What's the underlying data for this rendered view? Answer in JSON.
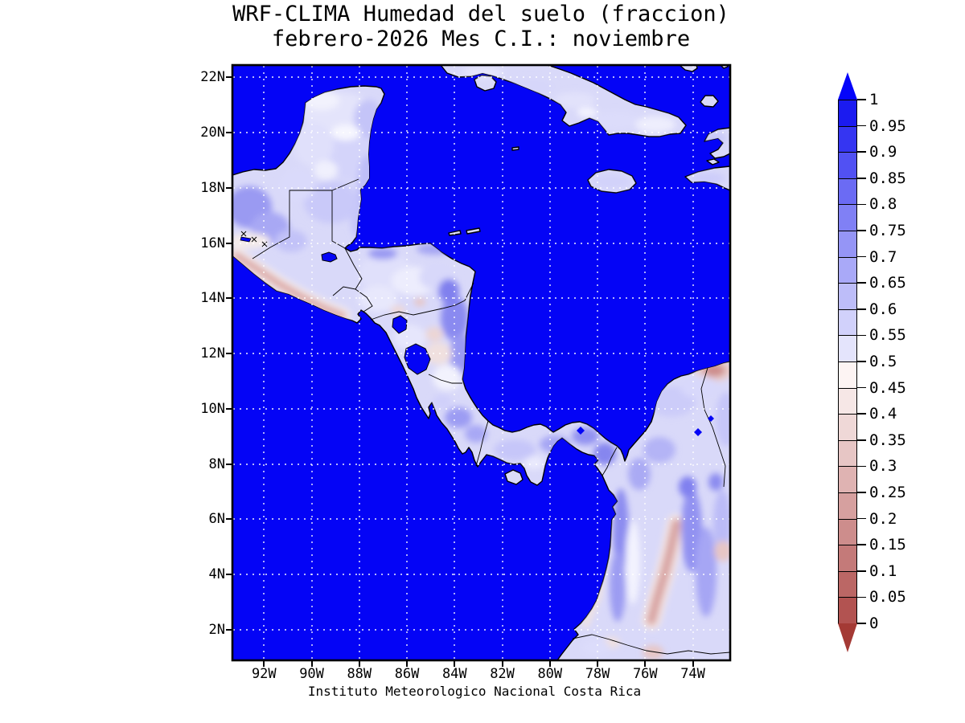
{
  "header": {
    "title_line1": "WRF-CLIMA Humedad del suelo (fraccion)",
    "title_line2": "febrero-2026 Mes C.I.: noviembre"
  },
  "footer": {
    "caption": "Instituto Meteorologico Nacional Costa Rica"
  },
  "map": {
    "lat_labels": [
      "22N",
      "20N",
      "18N",
      "16N",
      "14N",
      "12N",
      "10N",
      "8N",
      "6N",
      "4N",
      "2N"
    ],
    "lon_labels": [
      "92W",
      "90W",
      "88W",
      "86W",
      "84W",
      "82W",
      "80W",
      "78W",
      "76W",
      "74W"
    ],
    "ocean_color": "#0404f6",
    "gridline_color": "#ffffff",
    "coastline_color": "#000000"
  },
  "colorbar": {
    "labels": [
      "1",
      "0.95",
      "0.9",
      "0.85",
      "0.8",
      "0.75",
      "0.7",
      "0.65",
      "0.6",
      "0.55",
      "0.5",
      "0.45",
      "0.4",
      "0.35",
      "0.3",
      "0.25",
      "0.2",
      "0.15",
      "0.1",
      "0.05",
      "0"
    ],
    "segment_colors_top_to_bottom": [
      "#1b1bf0",
      "#3535f2",
      "#5151f3",
      "#6b6bf4",
      "#8080f5",
      "#9595f6",
      "#a9a9f8",
      "#bdbdf9",
      "#d1d1fb",
      "#e4e4fc",
      "#fdf4f3",
      "#f6e7e6",
      "#efd8d7",
      "#e7c6c5",
      "#dfb3b2",
      "#d6a09f",
      "#cd8d8c",
      "#c47a79",
      "#bb6765",
      "#b25351"
    ],
    "over_color": "#0505fa",
    "under_color": "#a43a35"
  }
}
